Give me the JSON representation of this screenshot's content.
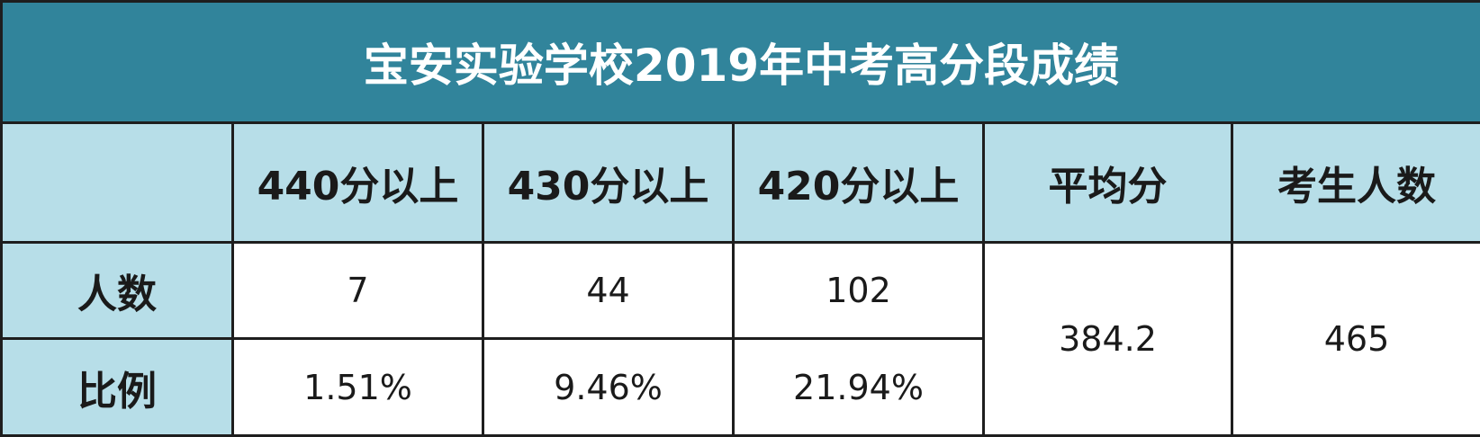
{
  "table": {
    "title": "宝安实验学校2019年中考高分段成绩",
    "header": [
      "440分以上",
      "430分以上",
      "420分以上",
      "平均分",
      "考生人数"
    ],
    "rows": [
      {
        "label": "人数",
        "values": [
          7,
          44,
          102
        ]
      },
      {
        "label": "比例",
        "values": [
          "1.51%",
          "9.46%",
          "21.94%"
        ]
      }
    ],
    "average": 384.2,
    "total_students": 465
  }
}
